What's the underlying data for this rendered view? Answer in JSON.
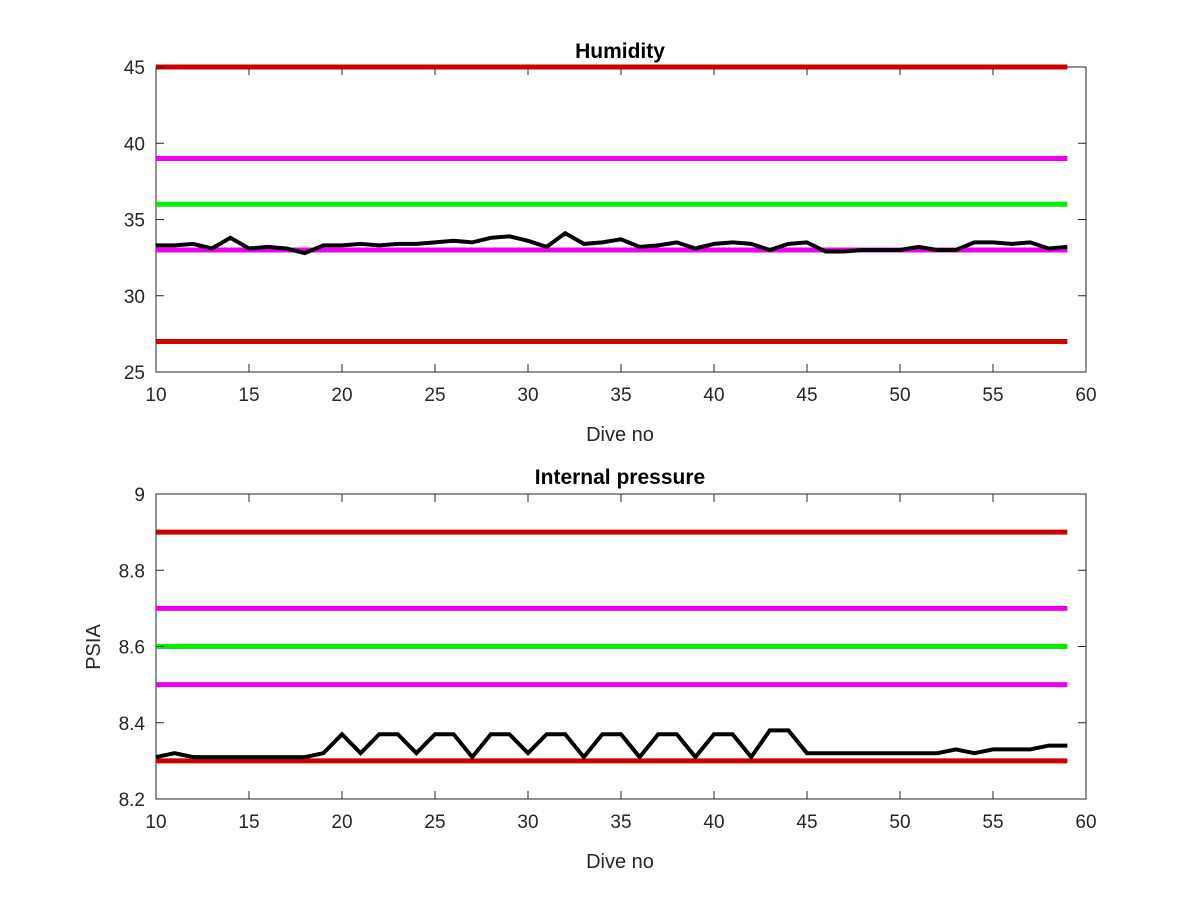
{
  "chart_data": [
    {
      "type": "line",
      "title": "Humidity",
      "xlabel": "Dive no",
      "ylabel": "",
      "xlim": [
        10,
        60
      ],
      "ylim": [
        25,
        45
      ],
      "xticks": [
        "10",
        "15",
        "20",
        "25",
        "30",
        "35",
        "40",
        "45",
        "50",
        "55",
        "60"
      ],
      "yticks": [
        "25",
        "30",
        "35",
        "40",
        "45"
      ],
      "grid": false,
      "thresholds": [
        {
          "y": 45,
          "color": "#cc0000"
        },
        {
          "y": 39,
          "color": "#ee00ee"
        },
        {
          "y": 36,
          "color": "#00ee00"
        },
        {
          "y": 33,
          "color": "#ee00ee"
        },
        {
          "y": 27,
          "color": "#cc0000"
        }
      ],
      "series": [
        {
          "color": "#000000",
          "x": [
            10,
            11,
            12,
            13,
            14,
            15,
            16,
            17,
            18,
            19,
            20,
            21,
            22,
            23,
            24,
            25,
            26,
            27,
            28,
            29,
            30,
            31,
            32,
            33,
            34,
            35,
            36,
            37,
            38,
            39,
            40,
            41,
            42,
            43,
            44,
            45,
            46,
            47,
            48,
            49,
            50,
            51,
            52,
            53,
            54,
            55,
            56,
            57,
            58,
            59
          ],
          "values": [
            33.3,
            33.3,
            33.4,
            33.1,
            33.8,
            33.1,
            33.2,
            33.1,
            32.8,
            33.3,
            33.3,
            33.4,
            33.3,
            33.4,
            33.4,
            33.5,
            33.6,
            33.5,
            33.8,
            33.9,
            33.6,
            33.2,
            34.1,
            33.4,
            33.5,
            33.7,
            33.2,
            33.3,
            33.5,
            33.1,
            33.4,
            33.5,
            33.4,
            33.0,
            33.4,
            33.5,
            32.9,
            32.9,
            33.0,
            33.0,
            33.0,
            33.2,
            33.0,
            33.0,
            33.5,
            33.5,
            33.4,
            33.5,
            33.1,
            33.2
          ]
        }
      ]
    },
    {
      "type": "line",
      "title": "Internal pressure",
      "xlabel": "Dive no",
      "ylabel": "PSIA",
      "xlim": [
        10,
        60
      ],
      "ylim": [
        8.2,
        9.0
      ],
      "xticks": [
        "10",
        "15",
        "20",
        "25",
        "30",
        "35",
        "40",
        "45",
        "50",
        "55",
        "60"
      ],
      "yticks": [
        "8.2",
        "8.4",
        "8.6",
        "8.8",
        "9"
      ],
      "grid": false,
      "thresholds": [
        {
          "y": 8.9,
          "color": "#cc0000"
        },
        {
          "y": 8.7,
          "color": "#ee00ee"
        },
        {
          "y": 8.6,
          "color": "#00ee00"
        },
        {
          "y": 8.5,
          "color": "#ee00ee"
        },
        {
          "y": 8.3,
          "color": "#cc0000"
        }
      ],
      "series": [
        {
          "color": "#000000",
          "x": [
            10,
            11,
            12,
            13,
            14,
            15,
            16,
            17,
            18,
            19,
            20,
            21,
            22,
            23,
            24,
            25,
            26,
            27,
            28,
            29,
            30,
            31,
            32,
            33,
            34,
            35,
            36,
            37,
            38,
            39,
            40,
            41,
            42,
            43,
            44,
            45,
            46,
            47,
            48,
            49,
            50,
            51,
            52,
            53,
            54,
            55,
            56,
            57,
            58,
            59
          ],
          "values": [
            8.31,
            8.32,
            8.31,
            8.31,
            8.31,
            8.31,
            8.31,
            8.31,
            8.31,
            8.32,
            8.37,
            8.32,
            8.37,
            8.37,
            8.32,
            8.37,
            8.37,
            8.31,
            8.37,
            8.37,
            8.32,
            8.37,
            8.37,
            8.31,
            8.37,
            8.37,
            8.31,
            8.37,
            8.37,
            8.31,
            8.37,
            8.37,
            8.31,
            8.38,
            8.38,
            8.32,
            8.32,
            8.32,
            8.32,
            8.32,
            8.32,
            8.32,
            8.32,
            8.33,
            8.32,
            8.33,
            8.33,
            8.33,
            8.34,
            8.34
          ]
        }
      ]
    }
  ]
}
